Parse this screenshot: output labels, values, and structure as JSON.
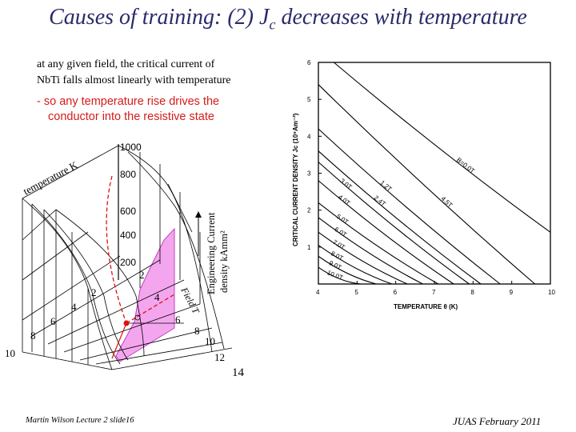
{
  "title": {
    "prefix": "Causes of training: (2) J",
    "subscript": "c",
    "suffix": " decreases with temperature"
  },
  "text": {
    "line1": "at any given field, the critical current of",
    "line2": "NbTi falls almost linearly with temperature",
    "note_line1": "- so any temperature rise drives the",
    "note_line2": "conductor into the resistive state"
  },
  "surface_plot": {
    "temperature_label": "temperature K",
    "field_label": "Field T",
    "current_label_1": "Engineering Current",
    "current_label_2": "density kAmm²",
    "current_ticks": [
      "1000",
      "800",
      "600",
      "400",
      "200"
    ],
    "temperature_ticks": [
      "2",
      "4",
      "6",
      "8",
      "10"
    ],
    "field_ticks": [
      "2",
      "4",
      "6",
      "8",
      "10",
      "12",
      "14"
    ]
  },
  "chart_data": {
    "type": "line",
    "xlabel": "TEMPERATURE θ (K)",
    "ylabel": "CRITICAL CURRENT DENSITY Jc (10⁹Am⁻²)",
    "xlim": [
      4,
      10
    ],
    "ylim": [
      0,
      6
    ],
    "xticks": [
      "4",
      "5",
      "6",
      "7",
      "8",
      "9",
      "10"
    ],
    "yticks": [
      "1",
      "2",
      "3",
      "4",
      "5",
      "6"
    ],
    "series": [
      {
        "name": "B=0.0T",
        "x": [
          4.4,
          10.0
        ],
        "y": [
          6.0,
          1.4
        ]
      },
      {
        "name": "4.5T",
        "x": [
          4.0,
          9.6
        ],
        "y": [
          5.4,
          0.0
        ]
      },
      {
        "name": "1.2T",
        "x": [
          4.0,
          8.7
        ],
        "y": [
          4.2,
          0.0
        ]
      },
      {
        "name": "2.4T",
        "x": [
          4.0,
          8.2
        ],
        "y": [
          3.6,
          0.0
        ]
      },
      {
        "name": "3.0T",
        "x": [
          4.0,
          7.9
        ],
        "y": [
          3.3,
          0.0
        ]
      },
      {
        "name": "4.0T",
        "x": [
          4.0,
          7.5
        ],
        "y": [
          2.8,
          0.0
        ]
      },
      {
        "name": "5.0T",
        "x": [
          4.0,
          7.1
        ],
        "y": [
          2.2,
          0.0
        ]
      },
      {
        "name": "6.0T",
        "x": [
          4.0,
          6.7
        ],
        "y": [
          1.8,
          0.0
        ]
      },
      {
        "name": "7.0T",
        "x": [
          4.0,
          6.3
        ],
        "y": [
          1.4,
          0.0
        ]
      },
      {
        "name": "8.0T",
        "x": [
          4.0,
          5.9
        ],
        "y": [
          1.05,
          0.0
        ]
      },
      {
        "name": "9.0T",
        "x": [
          4.0,
          5.5
        ],
        "y": [
          0.75,
          0.0
        ]
      },
      {
        "name": "10.0T",
        "x": [
          4.0,
          5.1
        ],
        "y": [
          0.45,
          0.0
        ]
      }
    ]
  },
  "footer": {
    "left": "Martin Wilson Lecture 2 slide16",
    "right": "JUAS February 2011"
  }
}
